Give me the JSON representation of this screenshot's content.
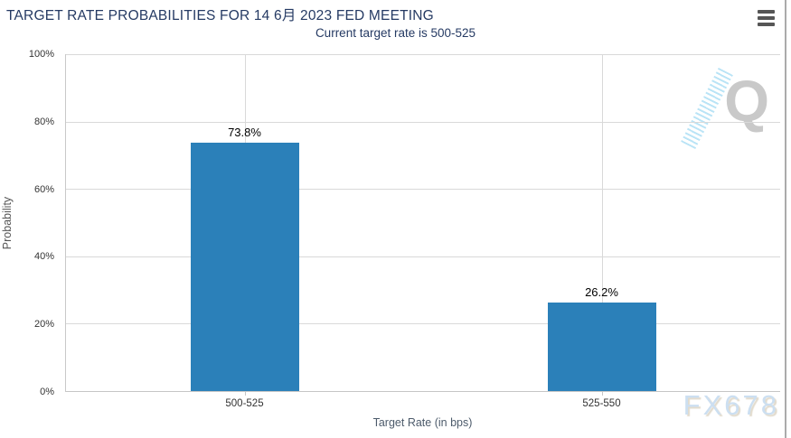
{
  "chart_data": {
    "type": "bar",
    "title": "TARGET RATE PROBABILITIES FOR 14 6月 2023 FED MEETING",
    "subtitle": "Current target rate is 500-525",
    "categories": [
      "500-525",
      "525-550"
    ],
    "values": [
      73.8,
      26.2
    ],
    "value_labels": [
      "73.8%",
      "26.2%"
    ],
    "xlabel": "Target Rate (in bps)",
    "ylabel": "Probability",
    "ylim": [
      0,
      100
    ],
    "y_ticks": [
      0,
      20,
      40,
      60,
      80,
      100
    ],
    "y_tick_labels": [
      "0%",
      "20%",
      "40%",
      "60%",
      "80%",
      "100%"
    ],
    "bar_color": "#2b80b9",
    "grid": true,
    "legend": false
  },
  "menu": {
    "tooltip": "Chart context menu"
  },
  "watermarks": {
    "q_logo": "Q",
    "fx678": "FX678"
  }
}
